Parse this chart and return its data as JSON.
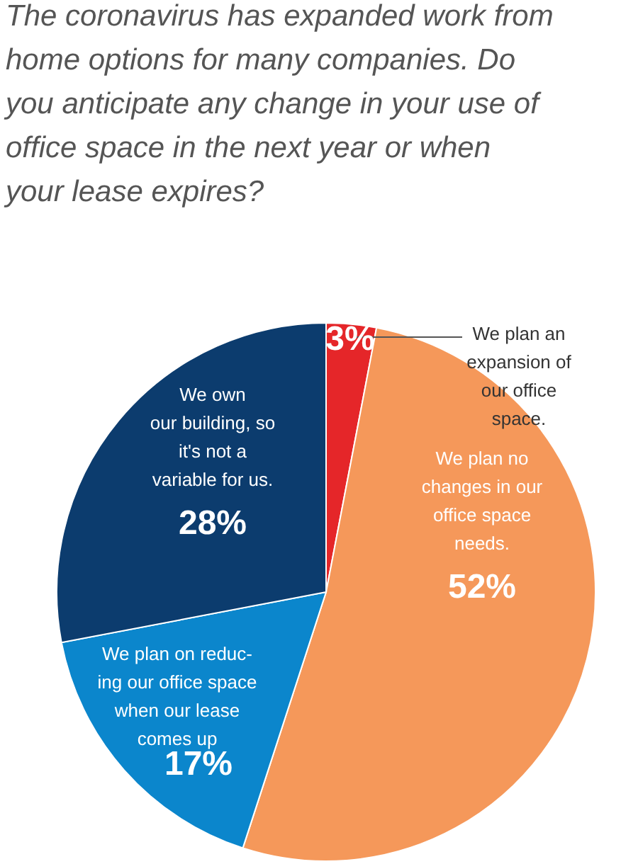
{
  "chart_data": {
    "type": "pie",
    "title": "The coronavirus has expanded work from\nhome options for many companies. Do\nyou anticipate any change in your use of\noffice space in the next year or when\nyour lease expires?",
    "categories": [
      "We plan an\nexpansion of\nour office\nspace.",
      "We plan no\nchanges in our\noffice space\nneeds.",
      "We plan on reduc-\ning our office space\nwhen our lease\ncomes up",
      "We own\nour building, so\nit's not a\nvariable for us."
    ],
    "values": [
      3,
      52,
      17,
      28
    ],
    "colors": [
      "#e52629",
      "#f5985a",
      "#0b86cc",
      "#0c3c6e"
    ],
    "value_labels": [
      "3%",
      "52%",
      "17%",
      "28%"
    ]
  }
}
